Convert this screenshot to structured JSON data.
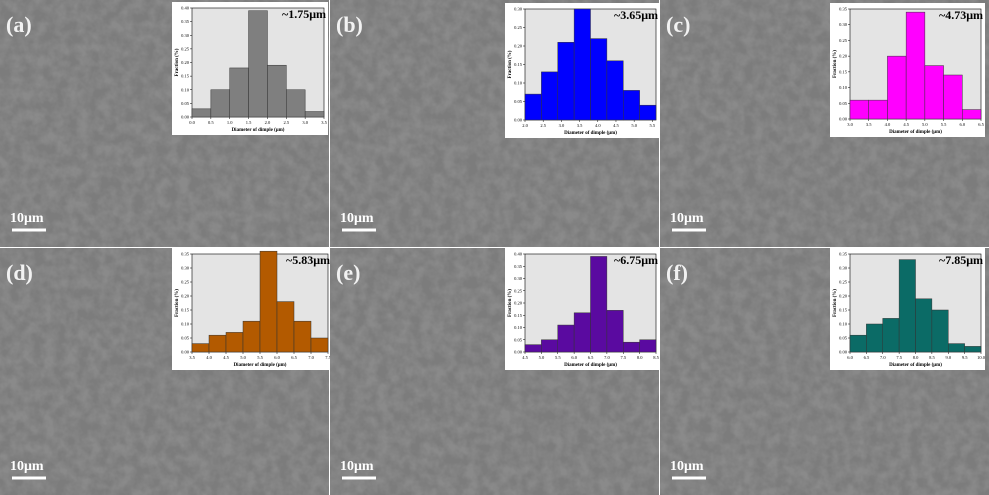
{
  "chart_data": [
    {
      "type": "histogram",
      "panel_label": "(a)",
      "scale_label": "10μm",
      "annotation": "~1.75μm",
      "y_label": "Fraction (%)",
      "x_label": "Diameter of dimple (μm)",
      "color": "#7f7f7f",
      "bins": [
        0,
        0.5,
        1,
        1.5,
        2,
        2.5,
        3,
        3.5
      ],
      "values": [
        0.03,
        0.1,
        0.18,
        0.39,
        0.19,
        0.1,
        0.02
      ],
      "xlim": [
        0,
        3.5
      ],
      "ylim": [
        0,
        0.4
      ],
      "xticks": [
        {
          "value": 0,
          "label": "0.0"
        },
        0.5,
        {
          "value": 1,
          "label": "1.0"
        },
        1.5,
        {
          "value": 2,
          "label": "2.0"
        },
        2.5,
        {
          "value": 3,
          "label": "3.0"
        },
        3.5
      ],
      "yticks": [
        {
          "value": 0,
          "label": "0.00"
        },
        0.05,
        {
          "value": 0.1,
          "label": "0.10"
        },
        0.15,
        {
          "value": 0.2,
          "label": "0.20"
        },
        0.25,
        {
          "value": 0.3,
          "label": "0.30"
        },
        0.35,
        {
          "value": 0.4,
          "label": "0.40"
        }
      ]
    },
    {
      "type": "histogram",
      "panel_label": "(b)",
      "scale_label": "10μm",
      "annotation": "~3.65μm",
      "y_label": "Fraction (%)",
      "x_label": "Diameter of dimple (μm)",
      "color": "#0000ff",
      "bins": [
        2,
        2.45,
        2.9,
        3.35,
        3.8,
        4.25,
        4.7,
        5.15,
        5.6
      ],
      "values": [
        0.07,
        0.13,
        0.21,
        0.3,
        0.22,
        0.16,
        0.08,
        0.04
      ],
      "xlim": [
        2,
        5.6
      ],
      "ylim": [
        0,
        0.3
      ],
      "xticks": [
        {
          "value": 2,
          "label": "2.0"
        },
        2.5,
        {
          "value": 3,
          "label": "3.0"
        },
        3.5,
        {
          "value": 4,
          "label": "4.0"
        },
        4.5,
        {
          "value": 5,
          "label": "5.0"
        },
        5.5
      ],
      "yticks": [
        {
          "value": 0,
          "label": "0.00"
        },
        0.05,
        {
          "value": 0.1,
          "label": "0.10"
        },
        0.15,
        {
          "value": 0.2,
          "label": "0.20"
        },
        0.25,
        {
          "value": 0.3,
          "label": "0.30"
        }
      ]
    },
    {
      "type": "histogram",
      "panel_label": "(c)",
      "scale_label": "10μm",
      "annotation": "~4.73μm",
      "y_label": "Fraction (%)",
      "x_label": "Diameter of dimple (μm)",
      "color": "#ff00ff",
      "bins": [
        3,
        3.5,
        4,
        4.5,
        5,
        5.5,
        6,
        6.5
      ],
      "values": [
        0.06,
        0.06,
        0.2,
        0.34,
        0.17,
        0.14,
        0.03
      ],
      "xlim": [
        3,
        6.5
      ],
      "ylim": [
        0,
        0.35
      ],
      "xticks": [
        {
          "value": 3,
          "label": "3.0"
        },
        3.5,
        {
          "value": 4,
          "label": "4.0"
        },
        4.5,
        {
          "value": 5,
          "label": "5.0"
        },
        5.5,
        {
          "value": 6,
          "label": "6.0"
        },
        6.5
      ],
      "yticks": [
        {
          "value": 0,
          "label": "0.00"
        },
        0.05,
        {
          "value": 0.1,
          "label": "0.10"
        },
        0.15,
        {
          "value": 0.2,
          "label": "0.20"
        },
        0.25,
        {
          "value": 0.3,
          "label": "0.30"
        },
        0.35
      ]
    },
    {
      "type": "histogram",
      "panel_label": "(d)",
      "scale_label": "10μm",
      "annotation": "~5.83μm",
      "y_label": "Fraction (%)",
      "x_label": "Diameter of dimple (μm)",
      "color": "#b35a00",
      "bins": [
        3.5,
        4,
        4.5,
        5,
        5.5,
        6,
        6.5,
        7,
        7.5
      ],
      "values": [
        0.03,
        0.06,
        0.07,
        0.11,
        0.36,
        0.18,
        0.11,
        0.05
      ],
      "xlim": [
        3.5,
        7.5
      ],
      "ylim": [
        0,
        0.35
      ],
      "xticks": [
        3.5,
        {
          "value": 4,
          "label": "4.0"
        },
        4.5,
        {
          "value": 5,
          "label": "5.0"
        },
        5.5,
        {
          "value": 6,
          "label": "6.0"
        },
        6.5,
        {
          "value": 7,
          "label": "7.0"
        },
        7.5
      ],
      "yticks": [
        {
          "value": 0,
          "label": "0.00"
        },
        0.05,
        {
          "value": 0.1,
          "label": "0.10"
        },
        0.15,
        {
          "value": 0.2,
          "label": "0.20"
        },
        0.25,
        {
          "value": 0.3,
          "label": "0.30"
        },
        0.35
      ]
    },
    {
      "type": "histogram",
      "panel_label": "(e)",
      "scale_label": "10μm",
      "annotation": "~6.75μm",
      "y_label": "Fraction (%)",
      "x_label": "Diameter of dimple (μm)",
      "color": "#5a0aa0",
      "bins": [
        4.5,
        5,
        5.5,
        6,
        6.5,
        7,
        7.5,
        8,
        8.5
      ],
      "values": [
        0.03,
        0.05,
        0.11,
        0.16,
        0.39,
        0.17,
        0.04,
        0.05
      ],
      "xlim": [
        4.5,
        8.5
      ],
      "ylim": [
        0,
        0.4
      ],
      "xticks": [
        4.5,
        {
          "value": 5,
          "label": "5.0"
        },
        5.5,
        {
          "value": 6,
          "label": "6.0"
        },
        6.5,
        {
          "value": 7,
          "label": "7.0"
        },
        7.5,
        {
          "value": 8,
          "label": "8.0"
        },
        8.5
      ],
      "yticks": [
        {
          "value": 0,
          "label": "0.00"
        },
        0.05,
        {
          "value": 0.1,
          "label": "0.10"
        },
        0.15,
        {
          "value": 0.2,
          "label": "0.20"
        },
        0.25,
        {
          "value": 0.3,
          "label": "0.30"
        },
        0.35,
        {
          "value": 0.4,
          "label": "0.40"
        }
      ]
    },
    {
      "type": "histogram",
      "panel_label": "(f)",
      "scale_label": "10μm",
      "annotation": "~7.85μm",
      "y_label": "Fraction (%)",
      "x_label": "Diameter of dimple (μm)",
      "color": "#0b6b66",
      "bins": [
        6,
        6.5,
        7,
        7.5,
        8,
        8.5,
        9,
        9.5,
        10
      ],
      "values": [
        0.06,
        0.1,
        0.12,
        0.33,
        0.19,
        0.15,
        0.03,
        0.02
      ],
      "xlim": [
        6,
        10
      ],
      "ylim": [
        0,
        0.35
      ],
      "xticks": [
        {
          "value": 6,
          "label": "6.0"
        },
        6.5,
        {
          "value": 7,
          "label": "7.0"
        },
        7.5,
        {
          "value": 8,
          "label": "8.0"
        },
        8.5,
        {
          "value": 9,
          "label": "9.0"
        },
        9.5,
        {
          "value": 10,
          "label": "10.0"
        }
      ],
      "yticks": [
        {
          "value": 0,
          "label": "0.00"
        },
        0.05,
        {
          "value": 0.1,
          "label": "0.10"
        },
        0.15,
        {
          "value": 0.2,
          "label": "0.20"
        },
        0.25,
        {
          "value": 0.3,
          "label": "0.30"
        },
        0.35
      ]
    }
  ]
}
